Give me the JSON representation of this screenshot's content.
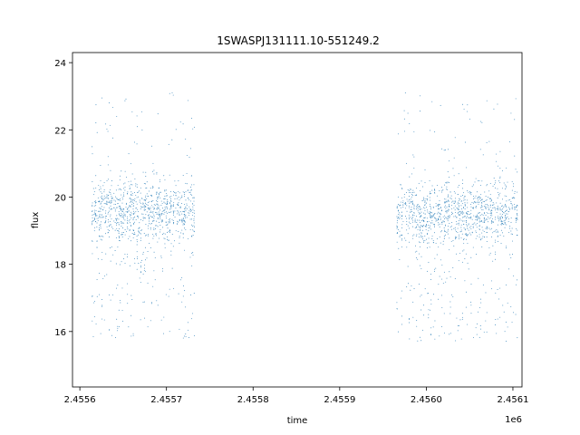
{
  "chart_data": {
    "type": "scatter",
    "title": "1SWASPJ131111.10-551249.2",
    "xlabel": "time",
    "ylabel": "flux",
    "x_offset_label": "1e6",
    "xlim": [
      2455591.5,
      2456110.5
    ],
    "ylim": [
      14.35,
      24.3
    ],
    "x_ticks": [
      2455600,
      2455700,
      2455800,
      2455900,
      2456000,
      2456100
    ],
    "x_tick_labels": [
      "2.4556",
      "2.4557",
      "2.4558",
      "2.4559",
      "2.4560",
      "2.4561"
    ],
    "y_ticks": [
      16,
      18,
      20,
      22,
      24
    ],
    "y_tick_labels": [
      "16",
      "18",
      "20",
      "22",
      "24"
    ],
    "grid": false,
    "legend": "none",
    "marker_color": "#1f77b4",
    "series": [
      {
        "segments": [
          {
            "x_range": [
              2455614,
              2455733
            ],
            "y_center": 19.6,
            "y_spread": 1.0,
            "y_min_extreme": 15.1,
            "y_max_extreme": 23.6
          },
          {
            "x_range": [
              2455966,
              2456106
            ],
            "y_center": 19.5,
            "y_spread": 1.0,
            "y_min_extreme": 14.8,
            "y_max_extreme": 23.7
          }
        ]
      }
    ]
  }
}
